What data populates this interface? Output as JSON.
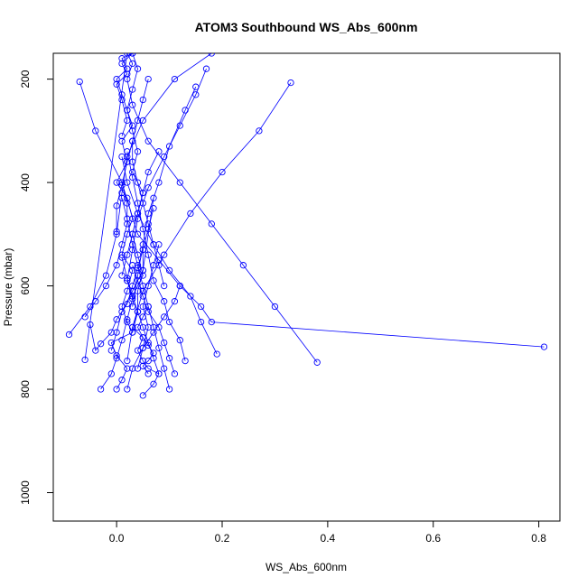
{
  "chart_data": {
    "type": "line",
    "title": "ATOM3 Southbound WS_Abs_600nm",
    "xlabel": "WS_Abs_600nm",
    "ylabel": "Pressure (mbar)",
    "xlim": [
      -0.12,
      0.84
    ],
    "ylim": [
      1055,
      150
    ],
    "y_reversed": true,
    "xticks": [
      "0.0",
      "0.2",
      "0.4",
      "0.6",
      "0.8"
    ],
    "xtick_values": [
      0.0,
      0.2,
      0.4,
      0.6,
      0.8
    ],
    "yticks": [
      "200",
      "400",
      "600",
      "800",
      "1000"
    ],
    "ytick_values": [
      200,
      400,
      600,
      800,
      1000
    ],
    "grid": false,
    "line_color": "#0000ff",
    "marker": "open-circle",
    "series": [
      {
        "x": [
          0.0,
          0.01,
          0.02,
          0.0,
          -0.01,
          0.03,
          0.02,
          0.01,
          0.02,
          0.03,
          0.01,
          0.02,
          0.03,
          0.02,
          0.0,
          0.02,
          0.01,
          0.03,
          0.02,
          0.01,
          0.0,
          0.02,
          0.01,
          0.03,
          0.01,
          0.02,
          0.0,
          0.01,
          0.02,
          0.01
        ],
        "y": [
          800,
          782,
          760,
          735,
          710,
          690,
          670,
          640,
          610,
          570,
          540,
          500,
          470,
          430,
          400,
          360,
          320,
          290,
          260,
          230,
          200,
          180,
          160,
          150,
          170,
          190,
          210,
          240,
          280,
          310
        ]
      },
      {
        "x": [
          0.05,
          0.07,
          0.08,
          0.06,
          0.05,
          0.04,
          0.05,
          0.03,
          0.04,
          0.03,
          0.05,
          0.04,
          0.03,
          0.04,
          0.05,
          0.03,
          0.04,
          0.03,
          0.02,
          0.03,
          0.04,
          0.03
        ],
        "y": [
          812,
          790,
          770,
          760,
          745,
          725,
          700,
          680,
          650,
          620,
          580,
          540,
          500,
          460,
          420,
          380,
          340,
          300,
          260,
          220,
          180,
          150
        ]
      },
      {
        "x": [
          -0.07,
          -0.04,
          0.01,
          0.04,
          0.08,
          0.12,
          0.16,
          0.18,
          0.81
        ],
        "y": [
          205,
          300,
          400,
          500,
          550,
          600,
          640,
          670,
          718
        ]
      },
      {
        "x": [
          0.18,
          0.11,
          0.05,
          0.02,
          0.01,
          0.0,
          -0.02,
          -0.05,
          -0.09
        ],
        "y": [
          150,
          200,
          280,
          350,
          420,
          500,
          580,
          640,
          694
        ]
      },
      {
        "x": [
          0.38,
          0.3,
          0.24,
          0.18,
          0.12,
          0.06,
          0.03,
          0.02,
          0.03,
          0.02,
          -0.06
        ],
        "y": [
          748,
          640,
          560,
          480,
          400,
          320,
          250,
          200,
          170,
          150,
          743
        ]
      },
      {
        "x": [
          0.33,
          0.27,
          0.2,
          0.14,
          0.09,
          0.05,
          0.03,
          0.02
        ],
        "y": [
          207,
          300,
          380,
          460,
          540,
          610,
          680,
          745
        ]
      },
      {
        "x": [
          0.1,
          0.09,
          0.08,
          0.07,
          0.06,
          0.05,
          0.04,
          0.03,
          0.02,
          0.01
        ],
        "y": [
          800,
          760,
          720,
          680,
          640,
          600,
          560,
          520,
          470,
          430
        ]
      },
      {
        "x": [
          0.13,
          0.12,
          0.1,
          0.09,
          0.07,
          0.06,
          0.05,
          0.04,
          0.03,
          0.02
        ],
        "y": [
          745,
          705,
          670,
          630,
          590,
          540,
          490,
          440,
          390,
          340
        ]
      },
      {
        "x": [
          0.19,
          0.16,
          0.14,
          0.1,
          0.07,
          0.04,
          0.02,
          0.01
        ],
        "y": [
          732,
          670,
          620,
          570,
          520,
          460,
          400,
          350
        ]
      },
      {
        "x": [
          0.17,
          0.15,
          0.12,
          0.09,
          0.06,
          0.04,
          0.03,
          0.02
        ],
        "y": [
          180,
          230,
          290,
          350,
          410,
          470,
          530,
          590
        ]
      },
      {
        "x": [
          0.15,
          0.13,
          0.1,
          0.08,
          0.06,
          0.05,
          0.04,
          0.03
        ],
        "y": [
          215,
          260,
          330,
          400,
          460,
          520,
          580,
          640
        ]
      },
      {
        "x": [
          -0.03,
          -0.01,
          0.0,
          0.01,
          0.02,
          0.03,
          0.02,
          0.01
        ],
        "y": [
          800,
          770,
          740,
          705,
          665,
          625,
          585,
          545
        ]
      },
      {
        "x": [
          -0.06,
          -0.04,
          -0.02,
          0.0,
          0.01,
          0.02,
          0.02,
          0.01
        ],
        "y": [
          660,
          630,
          600,
          560,
          520,
          480,
          440,
          400
        ]
      },
      {
        "x": [
          -0.05,
          -0.04,
          -0.03,
          -0.01,
          0.0,
          0.02,
          0.03,
          0.04,
          0.05
        ],
        "y": [
          675,
          725,
          712,
          690,
          665,
          635,
          600,
          565,
          530
        ]
      },
      {
        "x": [
          0.11,
          0.1,
          0.09,
          0.08,
          0.06,
          0.05,
          0.04,
          0.03
        ],
        "y": [
          770,
          740,
          710,
          680,
          650,
          620,
          590,
          560
        ]
      },
      {
        "x": [
          0.09,
          0.08,
          0.07,
          0.06,
          0.05,
          0.04,
          0.03,
          0.03
        ],
        "y": [
          600,
          560,
          520,
          480,
          440,
          400,
          360,
          320
        ]
      },
      {
        "x": [
          0.06,
          0.05,
          0.06,
          0.07,
          0.06,
          0.05,
          0.04,
          0.05,
          0.06
        ],
        "y": [
          770,
          755,
          745,
          730,
          715,
          700,
          680,
          660,
          640
        ]
      },
      {
        "x": [
          0.0,
          0.0,
          0.01,
          0.02,
          0.03,
          0.04,
          0.05,
          0.06
        ],
        "y": [
          495,
          445,
          405,
          360,
          320,
          280,
          240,
          200
        ]
      },
      {
        "x": [
          0.02,
          0.03,
          0.05,
          0.07,
          0.09,
          0.11,
          0.12
        ],
        "y": [
          800,
          760,
          720,
          690,
          660,
          630,
          600
        ]
      },
      {
        "x": [
          0.03,
          0.04,
          0.04,
          0.05,
          0.05,
          0.06,
          0.07
        ],
        "y": [
          690,
          650,
          610,
          570,
          530,
          490,
          450
        ]
      },
      {
        "x": [
          0.01,
          0.02,
          0.03,
          0.04,
          0.05,
          0.06,
          0.08
        ],
        "y": [
          580,
          540,
          500,
          460,
          420,
          380,
          340
        ]
      },
      {
        "x": [
          0.04,
          0.05,
          0.06,
          0.05,
          0.06,
          0.07,
          0.08
        ],
        "y": [
          760,
          720,
          680,
          640,
          600,
          560,
          520
        ]
      },
      {
        "x": [
          -0.01,
          0.0,
          0.01,
          0.03,
          0.05,
          0.07
        ],
        "y": [
          725,
          690,
          650,
          610,
          570,
          430
        ]
      },
      {
        "x": [
          0.08,
          0.07,
          0.06,
          0.05,
          0.04,
          0.03,
          0.02
        ],
        "y": [
          770,
          740,
          710,
          680,
          650,
          620,
          590
        ]
      }
    ]
  }
}
